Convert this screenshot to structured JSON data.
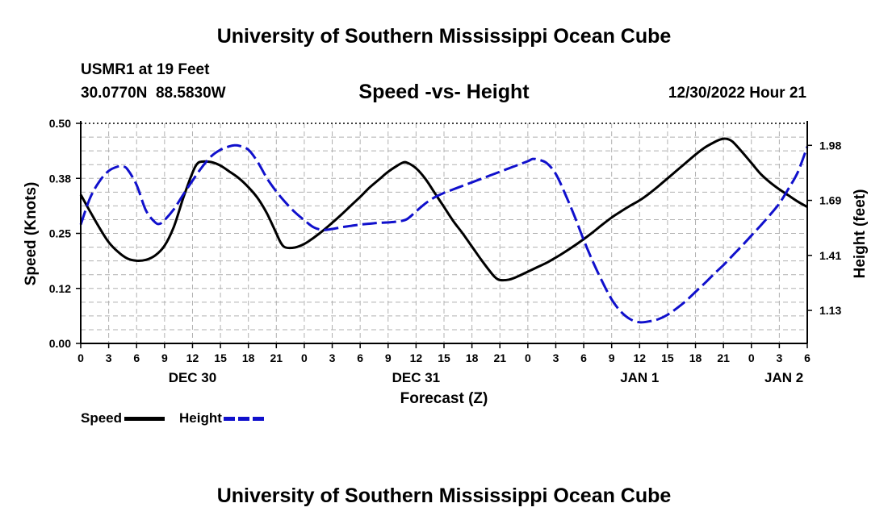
{
  "header": {
    "title": "University of Southern Mississippi Ocean Cube",
    "station": "USMR1 at 19 Feet",
    "coordinates": "30.0770N  88.5830W",
    "plot_title": "Speed -vs- Height",
    "timestamp": "12/30/2022 Hour 21",
    "footer_title": "University of Southern Mississippi Ocean Cube"
  },
  "legend": {
    "speed_label": "Speed",
    "height_label": "Height"
  },
  "colors": {
    "speed": "#000000",
    "height": "#1010cc",
    "grid": "#b0b0b0"
  },
  "chart_data": {
    "type": "line",
    "title": "Speed -vs- Height",
    "xlabel": "Forecast (Z)",
    "ylabel_left": "Speed (Knots)",
    "ylabel_right": "Height (feet)",
    "x_hours_range": [
      0,
      78
    ],
    "x_ticks": [
      0,
      3,
      6,
      9,
      12,
      15,
      18,
      21,
      24,
      27,
      30,
      33,
      36,
      39,
      42,
      45,
      48,
      51,
      54,
      57,
      60,
      63,
      66,
      69,
      72,
      75,
      78
    ],
    "x_tick_labels": [
      "0",
      "3",
      "6",
      "9",
      "12",
      "15",
      "18",
      "21",
      "0",
      "3",
      "6",
      "9",
      "12",
      "15",
      "18",
      "21",
      "0",
      "3",
      "6",
      "9",
      "12",
      "15",
      "18",
      "21",
      "0",
      "3",
      "6"
    ],
    "date_labels": [
      {
        "label": "DEC 30",
        "hour": 12
      },
      {
        "label": "DEC 31",
        "hour": 36
      },
      {
        "label": "JAN 1",
        "hour": 60
      },
      {
        "label": "JAN 2",
        "hour": 75.5
      }
    ],
    "ylim_left": [
      0,
      0.5
    ],
    "yticks_left": [
      "0.00",
      "0.12",
      "0.25",
      "0.38",
      "0.50"
    ],
    "yticks_right": [
      {
        "label": "1.13",
        "at": 0.075
      },
      {
        "label": "1.41",
        "at": 0.2
      },
      {
        "label": "1.69",
        "at": 0.325
      },
      {
        "label": "1.98",
        "at": 0.45
      }
    ],
    "series": [
      {
        "name": "Speed",
        "style": "solid",
        "points": [
          [
            0,
            0.338
          ],
          [
            1,
            0.3
          ],
          [
            2,
            0.263
          ],
          [
            3,
            0.23
          ],
          [
            4,
            0.208
          ],
          [
            5,
            0.193
          ],
          [
            6,
            0.188
          ],
          [
            7,
            0.19
          ],
          [
            8,
            0.2
          ],
          [
            9,
            0.222
          ],
          [
            10,
            0.265
          ],
          [
            11,
            0.33
          ],
          [
            12,
            0.388
          ],
          [
            12.5,
            0.408
          ],
          [
            13,
            0.413
          ],
          [
            14,
            0.412
          ],
          [
            15,
            0.404
          ],
          [
            16,
            0.39
          ],
          [
            17,
            0.375
          ],
          [
            18,
            0.355
          ],
          [
            19,
            0.33
          ],
          [
            20,
            0.295
          ],
          [
            21,
            0.25
          ],
          [
            21.5,
            0.228
          ],
          [
            22,
            0.218
          ],
          [
            23,
            0.218
          ],
          [
            24,
            0.226
          ],
          [
            25,
            0.24
          ],
          [
            26,
            0.256
          ],
          [
            27,
            0.274
          ],
          [
            28,
            0.293
          ],
          [
            29,
            0.313
          ],
          [
            30,
            0.333
          ],
          [
            31,
            0.354
          ],
          [
            32,
            0.372
          ],
          [
            33,
            0.39
          ],
          [
            34,
            0.404
          ],
          [
            34.5,
            0.41
          ],
          [
            35,
            0.411
          ],
          [
            36,
            0.398
          ],
          [
            37,
            0.374
          ],
          [
            38,
            0.342
          ],
          [
            39,
            0.31
          ],
          [
            40,
            0.278
          ],
          [
            41,
            0.25
          ],
          [
            42,
            0.22
          ],
          [
            43,
            0.19
          ],
          [
            44,
            0.162
          ],
          [
            44.5,
            0.15
          ],
          [
            45,
            0.144
          ],
          [
            46,
            0.145
          ],
          [
            47,
            0.153
          ],
          [
            48,
            0.163
          ],
          [
            49,
            0.173
          ],
          [
            50,
            0.183
          ],
          [
            51,
            0.195
          ],
          [
            52,
            0.208
          ],
          [
            53,
            0.222
          ],
          [
            54,
            0.237
          ],
          [
            55,
            0.253
          ],
          [
            56,
            0.27
          ],
          [
            57,
            0.286
          ],
          [
            58,
            0.3
          ],
          [
            59,
            0.313
          ],
          [
            60,
            0.325
          ],
          [
            61,
            0.34
          ],
          [
            62,
            0.357
          ],
          [
            63,
            0.375
          ],
          [
            64,
            0.393
          ],
          [
            65,
            0.411
          ],
          [
            66,
            0.429
          ],
          [
            67,
            0.445
          ],
          [
            68,
            0.457
          ],
          [
            68.5,
            0.462
          ],
          [
            69,
            0.465
          ],
          [
            69.5,
            0.464
          ],
          [
            70,
            0.458
          ],
          [
            71,
            0.435
          ],
          [
            72,
            0.41
          ],
          [
            73,
            0.385
          ],
          [
            74,
            0.366
          ],
          [
            75,
            0.35
          ],
          [
            76,
            0.336
          ],
          [
            77,
            0.322
          ],
          [
            78,
            0.31
          ]
        ]
      },
      {
        "name": "Height",
        "style": "dashed",
        "points": [
          [
            0,
            0.27
          ],
          [
            1,
            0.33
          ],
          [
            2,
            0.368
          ],
          [
            3,
            0.392
          ],
          [
            4,
            0.402
          ],
          [
            4.5,
            0.402
          ],
          [
            5,
            0.396
          ],
          [
            6,
            0.36
          ],
          [
            7,
            0.302
          ],
          [
            8,
            0.275
          ],
          [
            8.5,
            0.272
          ],
          [
            9,
            0.28
          ],
          [
            10,
            0.305
          ],
          [
            11,
            0.338
          ],
          [
            12,
            0.37
          ],
          [
            13,
            0.4
          ],
          [
            14,
            0.425
          ],
          [
            15,
            0.44
          ],
          [
            16,
            0.448
          ],
          [
            16.5,
            0.45
          ],
          [
            17,
            0.449
          ],
          [
            18,
            0.44
          ],
          [
            19,
            0.412
          ],
          [
            20,
            0.375
          ],
          [
            21,
            0.345
          ],
          [
            22,
            0.32
          ],
          [
            23,
            0.298
          ],
          [
            24,
            0.28
          ],
          [
            25,
            0.264
          ],
          [
            26,
            0.258
          ],
          [
            27,
            0.26
          ],
          [
            28,
            0.264
          ],
          [
            29,
            0.267
          ],
          [
            30,
            0.27
          ],
          [
            31,
            0.272
          ],
          [
            32,
            0.274
          ],
          [
            33,
            0.275
          ],
          [
            34,
            0.277
          ],
          [
            35,
            0.282
          ],
          [
            36,
            0.3
          ],
          [
            37,
            0.318
          ],
          [
            38,
            0.332
          ],
          [
            39,
            0.342
          ],
          [
            40,
            0.35
          ],
          [
            41,
            0.358
          ],
          [
            42,
            0.366
          ],
          [
            43,
            0.374
          ],
          [
            44,
            0.382
          ],
          [
            45,
            0.39
          ],
          [
            46,
            0.398
          ],
          [
            47,
            0.406
          ],
          [
            48,
            0.414
          ],
          [
            48.5,
            0.419
          ],
          [
            49,
            0.418
          ],
          [
            50,
            0.41
          ],
          [
            51,
            0.385
          ],
          [
            52,
            0.34
          ],
          [
            53,
            0.29
          ],
          [
            54,
            0.235
          ],
          [
            55,
            0.185
          ],
          [
            56,
            0.14
          ],
          [
            57,
            0.1
          ],
          [
            58,
            0.072
          ],
          [
            59,
            0.055
          ],
          [
            60,
            0.048
          ],
          [
            61,
            0.05
          ],
          [
            62,
            0.055
          ],
          [
            63,
            0.065
          ],
          [
            64,
            0.08
          ],
          [
            65,
            0.097
          ],
          [
            66,
            0.117
          ],
          [
            67,
            0.137
          ],
          [
            68,
            0.158
          ],
          [
            69,
            0.178
          ],
          [
            70,
            0.2
          ],
          [
            71,
            0.222
          ],
          [
            72,
            0.245
          ],
          [
            73,
            0.268
          ],
          [
            74,
            0.292
          ],
          [
            75,
            0.318
          ],
          [
            76,
            0.352
          ],
          [
            77,
            0.39
          ],
          [
            78,
            0.447
          ]
        ]
      }
    ]
  }
}
